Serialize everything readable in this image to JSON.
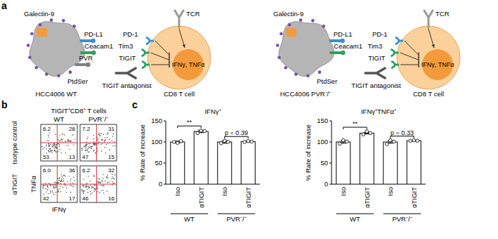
{
  "panels": {
    "a": {
      "label": "a",
      "diagrams": [
        {
          "tumor_label": "HCC4006 WT",
          "ligands": [
            "Galectin-9",
            "PD-L1",
            "Ceacam1",
            "PVR",
            "PtdSer"
          ],
          "t_cell_label": "CD8 T cell",
          "receptors": [
            "PD-1",
            "Tim3",
            "TIGIT"
          ],
          "tcr": "TCR",
          "cytokines": "IFNγ, TNFα",
          "antagonist": "TIGIT antagonist"
        },
        {
          "tumor_label": "HCC4006 PVR⁻/⁻",
          "ligands": [
            "Galectin-9",
            "PD-L1",
            "Ceacam1",
            null,
            "PtdSer"
          ],
          "t_cell_label": "CD8 T cell",
          "receptors": [
            "PD-1",
            "Tim3",
            "TIGIT"
          ],
          "tcr": "TCR",
          "cytokines": "IFNγ, TNFα",
          "antagonist": "TIGIT antagonist"
        }
      ]
    },
    "b": {
      "label": "b",
      "title": "TIGIT⁺CD8⁺ T cells",
      "columns": [
        "WT",
        "PVR⁻/⁻"
      ],
      "rows": [
        "Isotype control",
        "αTIGIT"
      ],
      "x_label": "IFNγ",
      "y_label": "TNFα",
      "quadrants": [
        [
          [
            "6.2",
            "28",
            "53",
            "13"
          ],
          [
            "7.2",
            "31",
            "47",
            "15"
          ]
        ],
        [
          [
            "6.0",
            "36",
            "42",
            "17"
          ],
          [
            "6.2",
            "32",
            "46",
            "16"
          ]
        ]
      ]
    },
    "c": {
      "label": "c"
    }
  },
  "chart_data": [
    {
      "type": "bar",
      "title": "IFNγ⁺",
      "y_label": "% Rate of increase",
      "categories": [
        "Iso",
        "αTIGIT",
        "Iso",
        "αTIGIT"
      ],
      "values": [
        100,
        125,
        100,
        101
      ],
      "error": [
        2,
        3,
        3,
        1
      ],
      "points": [
        [
          100,
          98,
          102
        ],
        [
          121,
          127,
          126
        ],
        [
          97,
          103,
          100
        ],
        [
          100,
          102,
          101
        ]
      ],
      "color": "#ffffff",
      "ylim": [
        0,
        150
      ],
      "yticks": [
        0,
        50,
        100,
        150
      ],
      "group_labels": [
        "WT",
        "PVR⁻/⁻"
      ],
      "significance": [
        "**",
        "p = 0.39"
      ]
    },
    {
      "type": "bar",
      "title": "IFNγ⁺TNFα⁺",
      "y_label": "% Rate of increase",
      "categories": [
        "Iso",
        "αTIGIT",
        "Iso",
        "αTIGIT"
      ],
      "values": [
        100,
        121,
        100,
        103
      ],
      "error": [
        3,
        2,
        3,
        1
      ],
      "points": [
        [
          96,
          104,
          101
        ],
        [
          118,
          125,
          121
        ],
        [
          95,
          104,
          101
        ],
        [
          103,
          104,
          103
        ]
      ],
      "color": "#ffffff",
      "ylim": [
        0,
        150
      ],
      "yticks": [
        0,
        50,
        100,
        150
      ],
      "group_labels": [
        "WT",
        "PVR⁻/⁻"
      ],
      "significance": [
        "**",
        "p = 0.33"
      ]
    }
  ]
}
